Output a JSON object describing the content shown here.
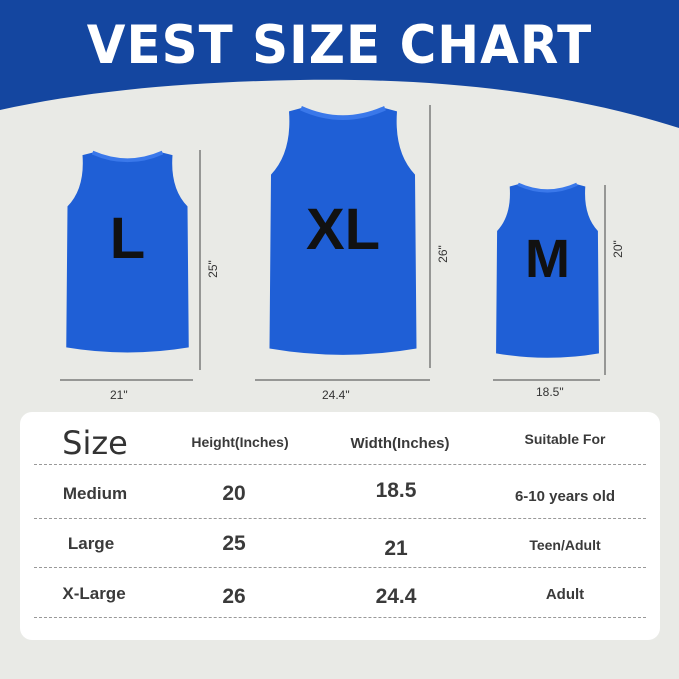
{
  "title": "VEST SIZE CHART",
  "colors": {
    "header_blue": "#1446a0",
    "vest_blue": "#1f5fd6",
    "background": "#e9eae6"
  },
  "vests": [
    {
      "letter": "L",
      "height_label": "25\"",
      "width_label": "21\""
    },
    {
      "letter": "XL",
      "height_label": "26\"",
      "width_label": "24.4\""
    },
    {
      "letter": "M",
      "height_label": "20\"",
      "width_label": "18.5\""
    }
  ],
  "table": {
    "headers": [
      "Size",
      "Height(Inches)",
      "Width(Inches)",
      "Suitable For"
    ],
    "rows": [
      [
        "Medium",
        "20",
        "18.5",
        "6-10 years old"
      ],
      [
        "Large",
        "25",
        "21",
        "Teen/Adult"
      ],
      [
        "X-Large",
        "26",
        "24.4",
        "Adult"
      ]
    ]
  }
}
